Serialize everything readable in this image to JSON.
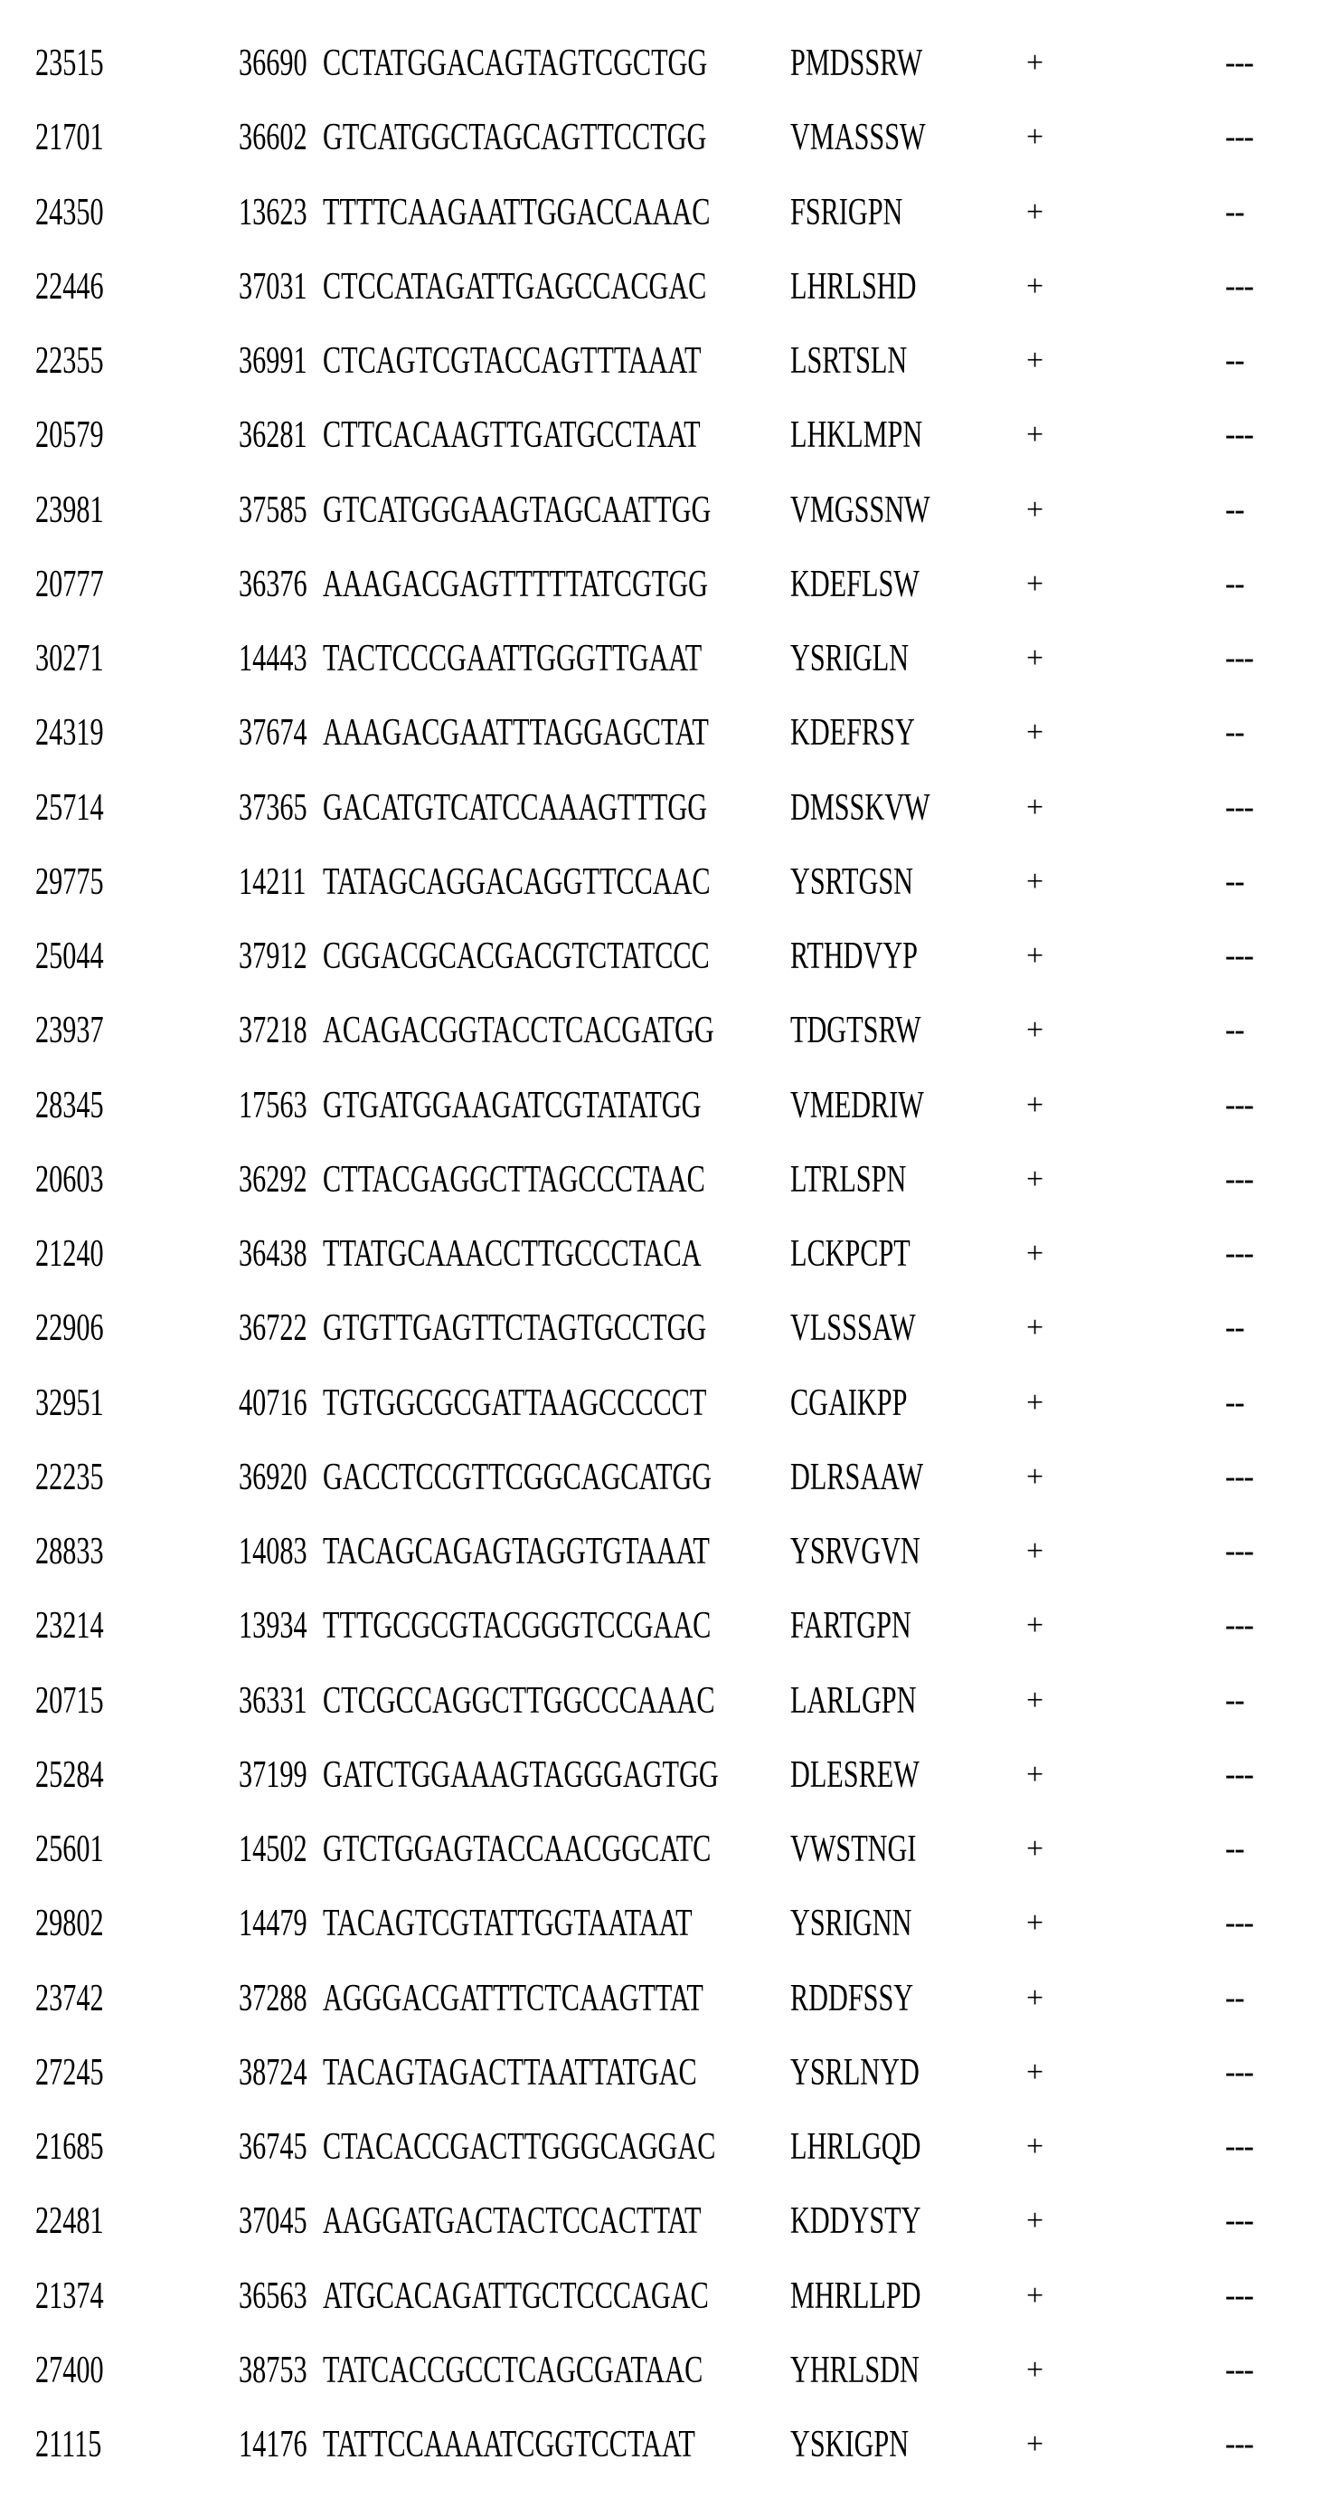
{
  "rows": [
    {
      "id": "23515",
      "pos": "36690",
      "seq": "CCTATGGACAGTAGTCGCTGG",
      "peptide": "PMDSSRW",
      "sign": "+",
      "result": "---"
    },
    {
      "id": "21701",
      "pos": "36602",
      "seq": "GTCATGGCTAGCAGTTCCTGG",
      "peptide": "VMASSSW",
      "sign": "+",
      "result": "---"
    },
    {
      "id": "24350",
      "pos": "13623",
      "seq": "TTTTCAAGAATTGGACCAAAC",
      "peptide": "FSRIGPN",
      "sign": "+",
      "result": "--"
    },
    {
      "id": "22446",
      "pos": "37031",
      "seq": "CTCCATAGATTGAGCCACGAC",
      "peptide": "LHRLSHD",
      "sign": "+",
      "result": "---"
    },
    {
      "id": "22355",
      "pos": "36991",
      "seq": "CTCAGTCGTACCAGTTTAAAT",
      "peptide": "LSRTSLN",
      "sign": "+",
      "result": "--"
    },
    {
      "id": "20579",
      "pos": "36281",
      "seq": "CTTCACAAGTTGATGCCTAAT",
      "peptide": "LHKLMPN",
      "sign": "+",
      "result": "---"
    },
    {
      "id": "23981",
      "pos": "37585",
      "seq": "GTCATGGGAAGTAGCAATTGG",
      "peptide": "VMGSSNW",
      "sign": "+",
      "result": "--"
    },
    {
      "id": "20777",
      "pos": "36376",
      "seq": "AAAGACGAGTTTTTATCGTGG",
      "peptide": "KDEFLSW",
      "sign": "+",
      "result": "--"
    },
    {
      "id": "30271",
      "pos": "14443",
      "seq": "TACTCCCGAATTGGGTTGAAT",
      "peptide": "YSRIGLN",
      "sign": "+",
      "result": "---"
    },
    {
      "id": "24319",
      "pos": "37674",
      "seq": "AAAGACGAATTTAGGAGCTAT",
      "peptide": "KDEFRSY",
      "sign": "+",
      "result": "--"
    },
    {
      "id": "25714",
      "pos": "37365",
      "seq": "GACATGTCATCCAAAGTTTGG",
      "peptide": "DMSSKVW",
      "sign": "+",
      "result": "---"
    },
    {
      "id": "29775",
      "pos": "14211",
      "seq": "TATAGCAGGACAGGTTCCAAC",
      "peptide": "YSRTGSN",
      "sign": "+",
      "result": "--"
    },
    {
      "id": "25044",
      "pos": "37912",
      "seq": "CGGACGCACGACGTCTATCCC",
      "peptide": "RTHDVYP",
      "sign": "+",
      "result": "---"
    },
    {
      "id": "23937",
      "pos": "37218",
      "seq": "ACAGACGGTACCTCACGATGG",
      "peptide": "TDGTSRW",
      "sign": "+",
      "result": "--"
    },
    {
      "id": "28345",
      "pos": "17563",
      "seq": "GTGATGGAAGATCGTATATGG",
      "peptide": "VMEDRIW",
      "sign": "+",
      "result": "---"
    },
    {
      "id": "20603",
      "pos": "36292",
      "seq": "CTTACGAGGCTTAGCCCTAAC",
      "peptide": "LTRLSPN",
      "sign": "+",
      "result": "---"
    },
    {
      "id": "21240",
      "pos": "36438",
      "seq": "TTATGCAAACCTTGCCCTACA",
      "peptide": "LCKPCPT",
      "sign": "+",
      "result": "---"
    },
    {
      "id": "22906",
      "pos": "36722",
      "seq": "GTGTTGAGTTCTAGTGCCTGG",
      "peptide": "VLSSSAW",
      "sign": "+",
      "result": "--"
    },
    {
      "id": "32951",
      "pos": "40716",
      "seq": "TGTGGCGCGATTAAGCCCCCT",
      "peptide": "CGAIKPP",
      "sign": "+",
      "result": "--"
    },
    {
      "id": "22235",
      "pos": "36920",
      "seq": "GACCTCCGTTCGGCAGCATGG",
      "peptide": "DLRSAAW",
      "sign": "+",
      "result": "---"
    },
    {
      "id": "28833",
      "pos": "14083",
      "seq": "TACAGCAGAGTAGGTGTAAAT",
      "peptide": "YSRVGVN",
      "sign": "+",
      "result": "---"
    },
    {
      "id": "23214",
      "pos": "13934",
      "seq": "TTTGCGCGTACGGGTCCGAAC",
      "peptide": "FARTGPN",
      "sign": "+",
      "result": "---"
    },
    {
      "id": "20715",
      "pos": "36331",
      "seq": "CTCGCCAGGCTTGGCCCAAAC",
      "peptide": "LARLGPN",
      "sign": "+",
      "result": "--"
    },
    {
      "id": "25284",
      "pos": "37199",
      "seq": "GATCTGGAAAGTAGGGAGTGG",
      "peptide": "DLESREW",
      "sign": "+",
      "result": "---"
    },
    {
      "id": "25601",
      "pos": "14502",
      "seq": "GTCTGGAGTACCAACGGCATC",
      "peptide": "VWSTNGI",
      "sign": "+",
      "result": "--"
    },
    {
      "id": "29802",
      "pos": "14479",
      "seq": "TACAGTCGTATTGGTAATAAT",
      "peptide": "YSRIGNN",
      "sign": "+",
      "result": "---"
    },
    {
      "id": "23742",
      "pos": "37288",
      "seq": "AGGGACGATTTCTCAAGTTAT",
      "peptide": "RDDFSSY",
      "sign": "+",
      "result": "--"
    },
    {
      "id": "27245",
      "pos": "38724",
      "seq": "TACAGTAGACTTAATTATGAC",
      "peptide": "YSRLNYD",
      "sign": "+",
      "result": "---"
    },
    {
      "id": "21685",
      "pos": "36745",
      "seq": "CTACACCGACTTGGGCAGGAC",
      "peptide": "LHRLGQD",
      "sign": "+",
      "result": "---"
    },
    {
      "id": "22481",
      "pos": "37045",
      "seq": "AAGGATGACTACTCCACTTAT",
      "peptide": "KDDYSTY",
      "sign": "+",
      "result": "---"
    },
    {
      "id": "21374",
      "pos": "36563",
      "seq": "ATGCACAGATTGCTCCCAGAC",
      "peptide": "MHRLLPD",
      "sign": "+",
      "result": "---"
    },
    {
      "id": "27400",
      "pos": "38753",
      "seq": "TATCACCGCCTCAGCGATAAC",
      "peptide": "YHRLSDN",
      "sign": "+",
      "result": "---"
    },
    {
      "id": "21115",
      "pos": "14176",
      "seq": "TATTCCAAAATCGGTCCTAAT",
      "peptide": "YSKIGPN",
      "sign": "+",
      "result": "---"
    }
  ]
}
